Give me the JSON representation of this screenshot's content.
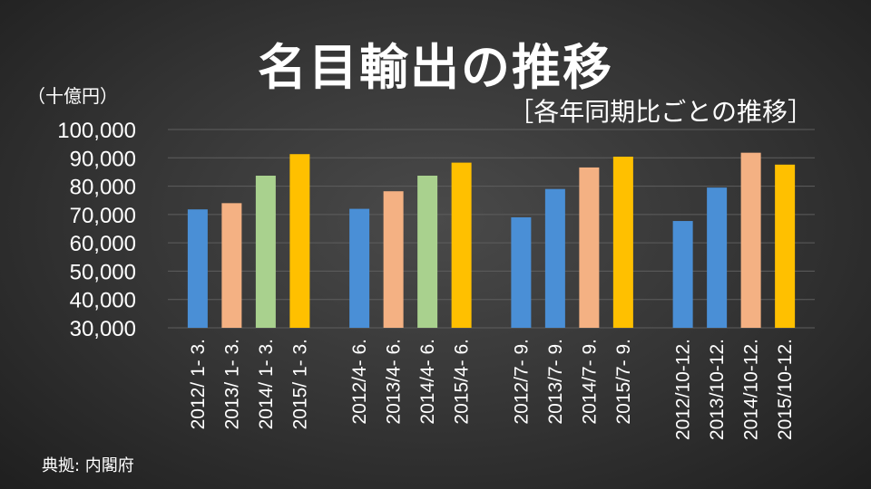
{
  "page": {
    "title": "名目輸出の推移",
    "subtitle": "［各年同期比ごとの推移］",
    "unit_label": "（十億円）",
    "source": "典拠: 内閣府"
  },
  "chart_data": {
    "type": "bar",
    "title": "名目輸出の推移",
    "subtitle": "［各年同期比ごとの推移］",
    "ylabel": "（十億円）",
    "xlabel": "",
    "ylim": [
      30000,
      100000
    ],
    "yticks": [
      "100,000",
      "90,000",
      "80,000",
      "70,000",
      "60,000",
      "50,000",
      "40,000",
      "30,000"
    ],
    "grid": true,
    "groups": [
      {
        "bars": [
          {
            "label": "2012/ 1- 3.",
            "value": 71800,
            "color": "#4a8fd6"
          },
          {
            "label": "2013/ 1- 3.",
            "value": 74000,
            "color": "#f4b183"
          },
          {
            "label": "2014/ 1- 3.",
            "value": 83700,
            "color": "#a9d18e"
          },
          {
            "label": "2015/ 1- 3.",
            "value": 91300,
            "color": "#ffc000"
          }
        ]
      },
      {
        "bars": [
          {
            "label": "2012/4- 6.",
            "value": 72000,
            "color": "#4a8fd6"
          },
          {
            "label": "2013/4- 6.",
            "value": 78200,
            "color": "#f4b183"
          },
          {
            "label": "2014/4- 6.",
            "value": 83700,
            "color": "#a9d18e"
          },
          {
            "label": "2015/4- 6.",
            "value": 88300,
            "color": "#ffc000"
          }
        ]
      },
      {
        "bars": [
          {
            "label": "2012/7- 9.",
            "value": 69000,
            "color": "#4a8fd6"
          },
          {
            "label": "2013/7- 9.",
            "value": 79000,
            "color": "#4a8fd6"
          },
          {
            "label": "2014/7- 9.",
            "value": 86600,
            "color": "#f4b183"
          },
          {
            "label": "2015/7- 9.",
            "value": 90400,
            "color": "#ffc000"
          }
        ]
      },
      {
        "bars": [
          {
            "label": "2012/10-12.",
            "value": 67700,
            "color": "#4a8fd6"
          },
          {
            "label": "2013/10-12.",
            "value": 79500,
            "color": "#4a8fd6"
          },
          {
            "label": "2014/10-12.",
            "value": 91800,
            "color": "#f4b183"
          },
          {
            "label": "2015/10-12.",
            "value": 87600,
            "color": "#ffc000"
          }
        ]
      }
    ]
  }
}
